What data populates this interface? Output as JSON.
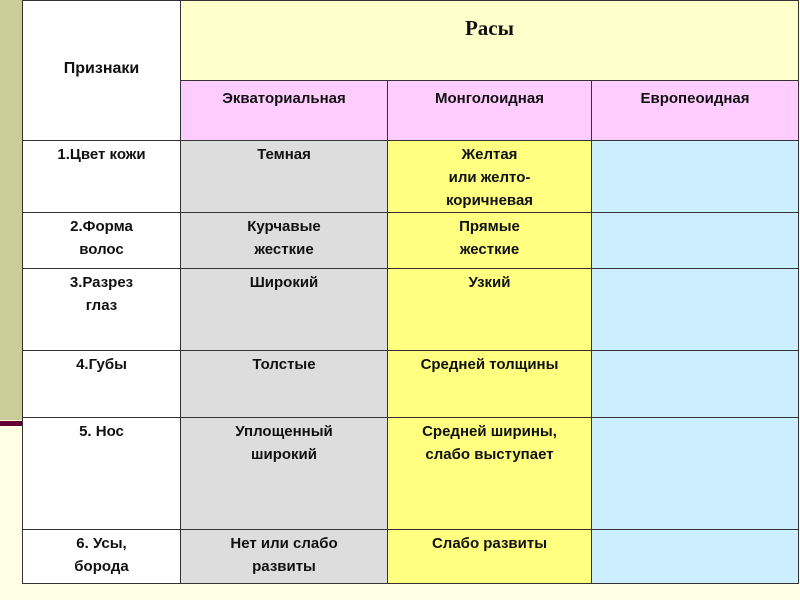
{
  "table": {
    "header": {
      "traits_label": "Признаки",
      "races_label": "Расы",
      "races": [
        "Экваториальная",
        "Монголоидная",
        "Европеоидная"
      ]
    },
    "rows": [
      {
        "trait": "1.Цвет кожи",
        "equatorial": "Темная",
        "mongoloid": "Желтая\nили желто-\nкоричневая",
        "caucasoid": ""
      },
      {
        "trait": "2.Форма\nволос",
        "equatorial": "Курчавые\nжесткие",
        "mongoloid": "Прямые\nжесткие",
        "caucasoid": ""
      },
      {
        "trait": "3.Разрез\nглаз",
        "equatorial": "Широкий",
        "mongoloid": "Узкий",
        "caucasoid": ""
      },
      {
        "trait": "4.Губы",
        "equatorial": "Толстые",
        "mongoloid": "Средней толщины",
        "caucasoid": ""
      },
      {
        "trait": "5. Нос",
        "equatorial": "Уплощенный\nширокий",
        "mongoloid": "Средней ширины,\nслабо выступает",
        "caucasoid": ""
      },
      {
        "trait": "6. Усы,\nборода",
        "equatorial": "Нет или слабо\nразвиты",
        "mongoloid": "Слабо развиты",
        "caucasoid": ""
      }
    ]
  },
  "colors": {
    "equatorial_column": "#dddddd",
    "mongoloid_column": "#ffff80",
    "caucasoid_column": "#cceeff",
    "race_names_row": "#ffccff",
    "races_header": "#ffffcc",
    "side_strip": "#cccc99",
    "accent_line": "#660033"
  }
}
